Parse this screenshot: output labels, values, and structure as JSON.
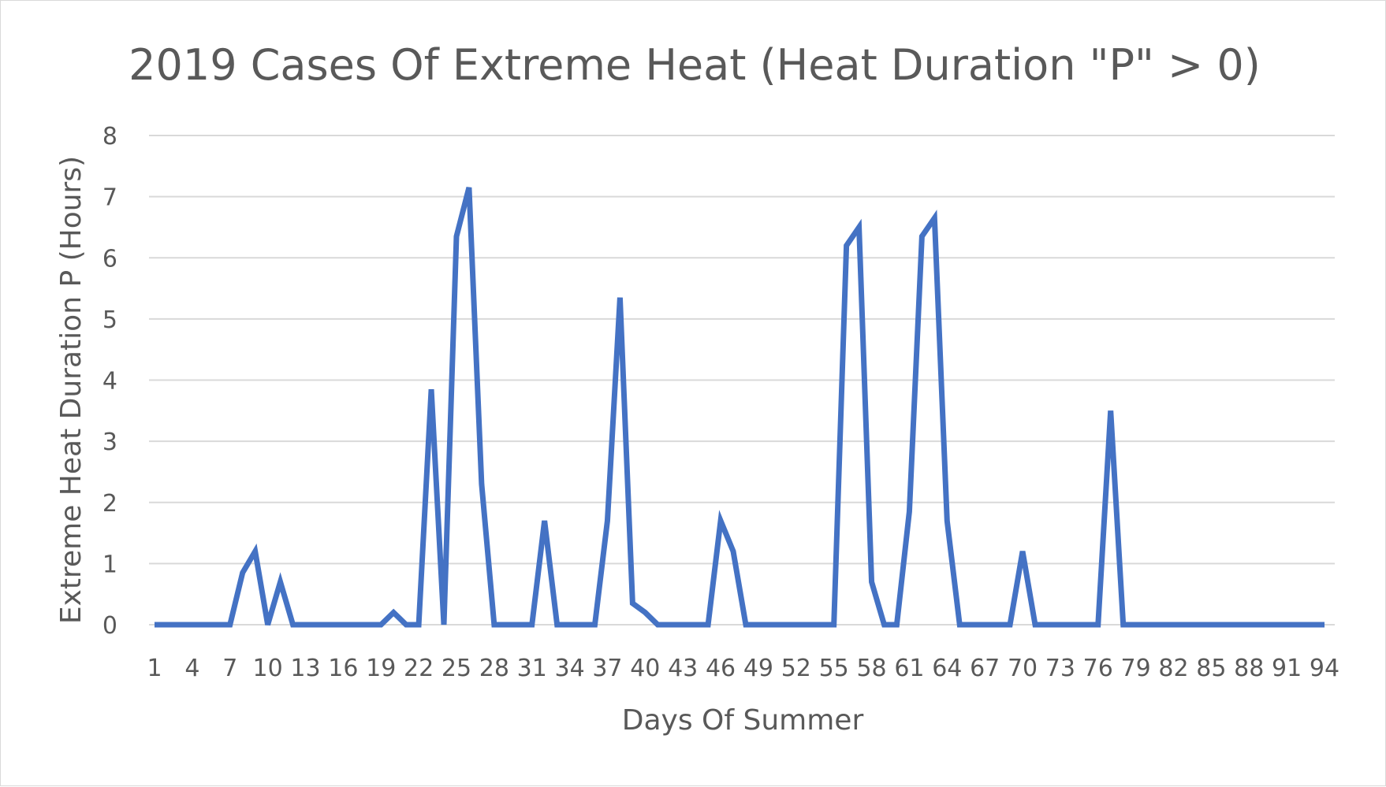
{
  "chart_data": {
    "type": "line",
    "title": "2019 Cases Of Extreme Heat (Heat Duration \"P\" > 0)",
    "xlabel": "Days Of Summer",
    "ylabel": "Extreme Heat Duration P (Hours)",
    "ylim": [
      0,
      8
    ],
    "yticks": [
      "0",
      "1",
      "2",
      "3",
      "4",
      "5",
      "6",
      "7",
      "8"
    ],
    "grid": true,
    "legend": "none",
    "x": [
      1,
      2,
      3,
      4,
      5,
      6,
      7,
      8,
      9,
      10,
      11,
      12,
      13,
      14,
      15,
      16,
      17,
      18,
      19,
      20,
      21,
      22,
      23,
      24,
      25,
      26,
      27,
      28,
      29,
      30,
      31,
      32,
      33,
      34,
      35,
      36,
      37,
      38,
      39,
      40,
      41,
      42,
      43,
      44,
      45,
      46,
      47,
      48,
      49,
      50,
      51,
      52,
      53,
      54,
      55,
      56,
      57,
      58,
      59,
      60,
      61,
      62,
      63,
      64,
      65,
      66,
      67,
      68,
      69,
      70,
      71,
      72,
      73,
      74,
      75,
      76,
      77,
      78,
      79,
      80,
      81,
      82,
      83,
      84,
      85,
      86,
      87,
      88,
      89,
      90,
      91,
      92,
      93,
      94
    ],
    "xtick_labels": [
      "1",
      "4",
      "7",
      "10",
      "13",
      "16",
      "19",
      "22",
      "25",
      "28",
      "31",
      "34",
      "37",
      "40",
      "43",
      "46",
      "49",
      "52",
      "55",
      "58",
      "61",
      "64",
      "67",
      "70",
      "73",
      "76",
      "79",
      "82",
      "85",
      "88",
      "91",
      "94"
    ],
    "xtick_positions": [
      1,
      4,
      7,
      10,
      13,
      16,
      19,
      22,
      25,
      28,
      31,
      34,
      37,
      40,
      43,
      46,
      49,
      52,
      55,
      58,
      61,
      64,
      67,
      70,
      73,
      76,
      79,
      82,
      85,
      88,
      91,
      94
    ],
    "series": [
      {
        "color": "#4472c4",
        "values": [
          0,
          0,
          0,
          0,
          0,
          0,
          0,
          0.85,
          1.2,
          0,
          0.7,
          0,
          0,
          0,
          0,
          0,
          0,
          0,
          0,
          0.2,
          0,
          0,
          3.85,
          0,
          6.35,
          7.15,
          2.3,
          0,
          0,
          0,
          0,
          1.7,
          0,
          0,
          0,
          0,
          1.7,
          5.35,
          0.35,
          0.2,
          0,
          0,
          0,
          0,
          0,
          1.7,
          1.2,
          0,
          0,
          0,
          0,
          0,
          0,
          0,
          0,
          6.2,
          6.5,
          0.7,
          0,
          0,
          1.85,
          6.35,
          6.65,
          1.7,
          0,
          0,
          0,
          0,
          0,
          1.2,
          0,
          0,
          0,
          0,
          0,
          0,
          3.5,
          0,
          0,
          0,
          0,
          0,
          0,
          0,
          0,
          0,
          0,
          0,
          0,
          0,
          0,
          0,
          0,
          0
        ]
      }
    ]
  }
}
